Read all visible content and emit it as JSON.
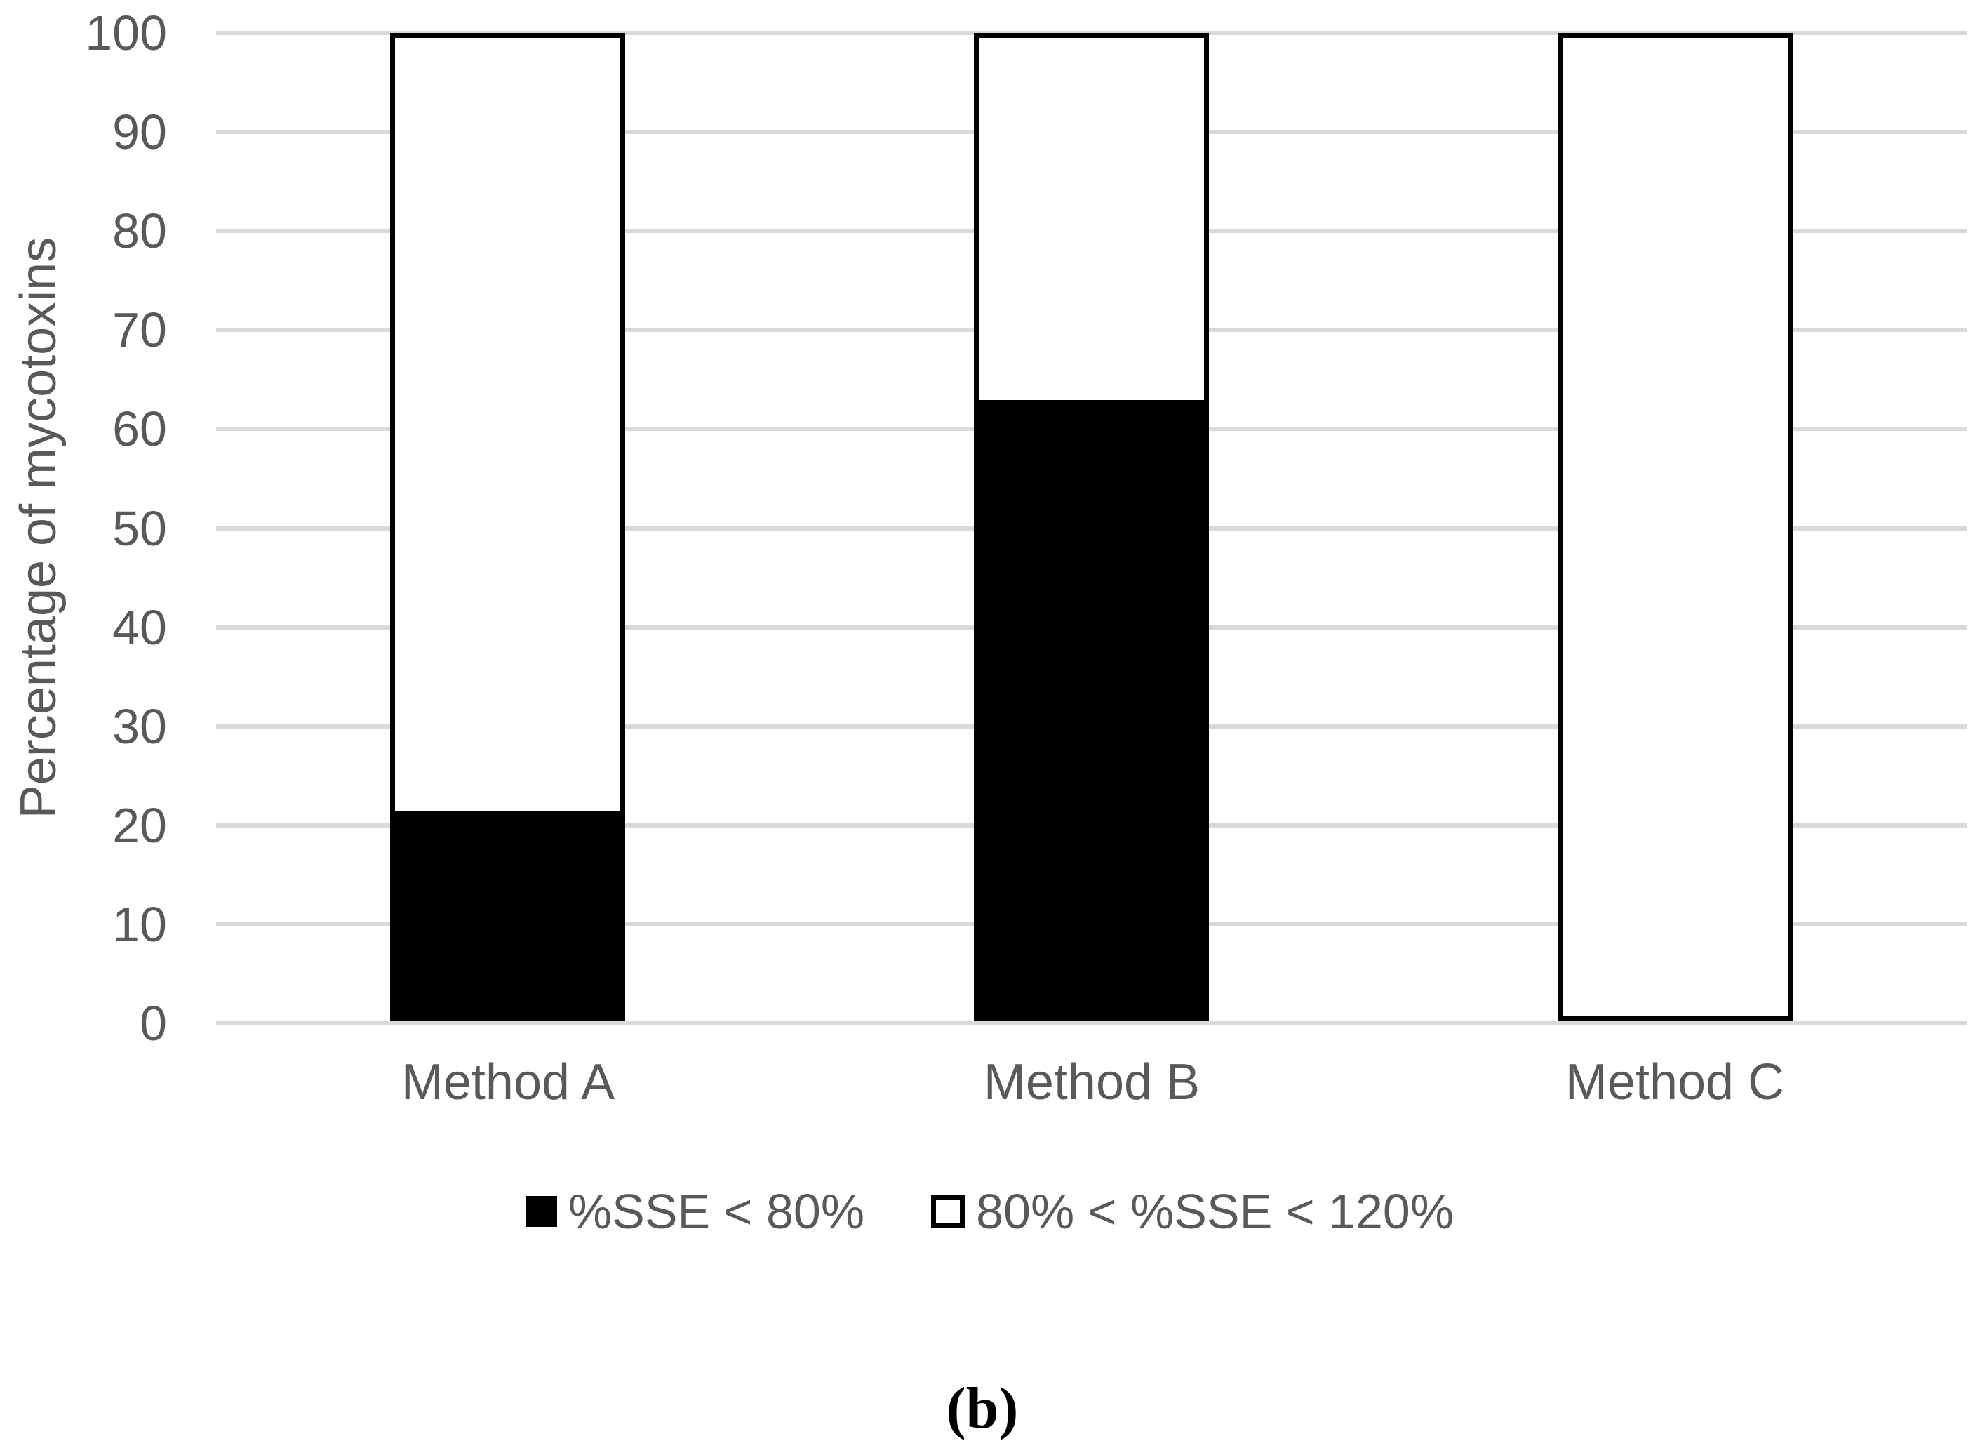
{
  "caption": "(b)",
  "colors": {
    "axis_text": "#595959",
    "gridline": "#D9D9D9",
    "bar_border": "#000000",
    "series_filled": "#000000",
    "series_outline": "#FFFFFF"
  },
  "chart_data": {
    "type": "bar",
    "stacked": true,
    "grid": true,
    "legend_position": "bottom",
    "title": "",
    "xlabel": "",
    "ylabel": "Percentage of mycotoxins",
    "ylim": [
      0,
      100
    ],
    "yticks": [
      0,
      10,
      20,
      30,
      40,
      50,
      60,
      70,
      80,
      90,
      100
    ],
    "categories": [
      "Method A",
      "Method B",
      "Method C"
    ],
    "series": [
      {
        "name": "%SSE < 80%",
        "values": [
          21,
          63,
          0
        ],
        "fill": "#000000",
        "swatch": "filled"
      },
      {
        "name": "80% < %SSE < 120%",
        "values": [
          79,
          37,
          100
        ],
        "fill": "#FFFFFF",
        "swatch": "outline"
      }
    ]
  }
}
